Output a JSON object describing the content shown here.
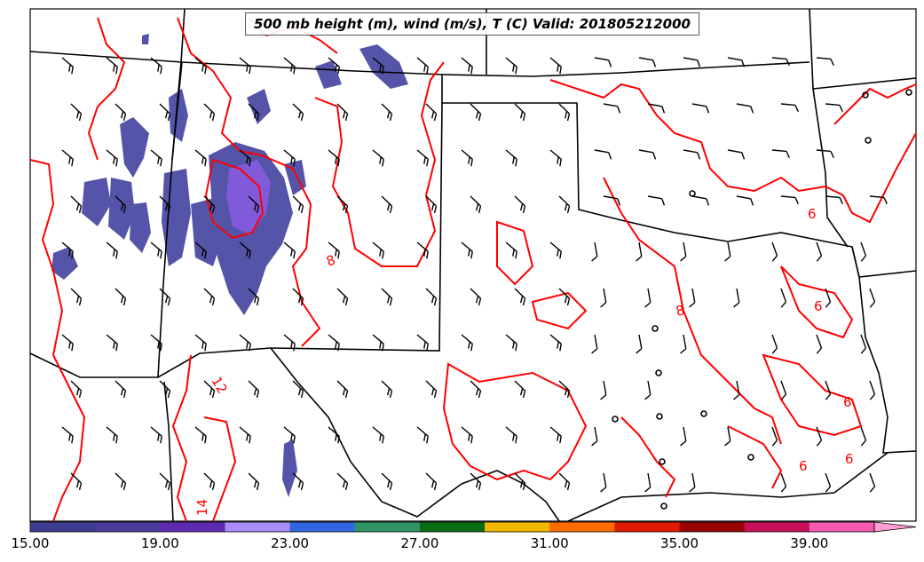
{
  "map": {
    "title": "500 mb height (m), wind (m/s), T (C) Valid: 201805212000",
    "contour_color": "#ff0000",
    "contour_labels": [
      "6",
      "8",
      "8",
      "12",
      "14",
      "6",
      "6",
      "6",
      "6"
    ],
    "shading_color": "#4b4ba5"
  },
  "colorbar": {
    "ticks": [
      "15.00",
      "19.00",
      "23.00",
      "27.00",
      "31.00",
      "35.00",
      "39.00"
    ],
    "colors": [
      "#3e3c8e",
      "#4a3d9b",
      "#5e2bb0",
      "#a78cf6",
      "#3166e0",
      "#2f9563",
      "#0b6a14",
      "#f2b700",
      "#fb6b00",
      "#e01b00",
      "#990000",
      "#c90f5a",
      "#f45ab0",
      "#ff9ed4"
    ]
  }
}
